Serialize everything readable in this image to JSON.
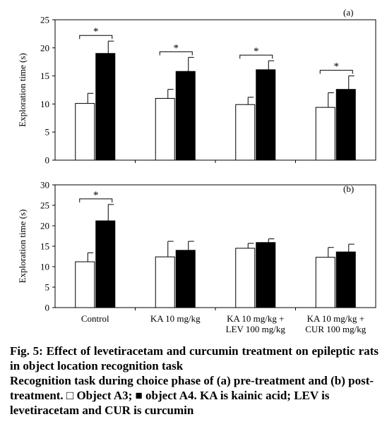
{
  "chart_data": [
    {
      "panel": "(a)",
      "type": "bar",
      "ylabel": "Exploration time (s)",
      "ylim": [
        0,
        25
      ],
      "yticks": [
        0,
        5,
        10,
        15,
        20,
        25
      ],
      "categories": [
        "Control",
        "KA 10 mg/kg",
        "KA 10 mg/kg + LEV 100 mg/kg",
        "KA 10 mg/kg + CUR 100 mg/kg"
      ],
      "series": [
        {
          "values": [
            10.1,
            11.0,
            9.9,
            9.4
          ],
          "errors": [
            1.8,
            1.6,
            1.3,
            2.6
          ],
          "color": "#ffffff"
        },
        {
          "values": [
            19.0,
            15.8,
            16.1,
            12.6
          ],
          "errors": [
            2.2,
            2.5,
            1.6,
            2.4
          ],
          "color": "#000000"
        }
      ],
      "significance": [
        "*",
        "*",
        "*",
        "*"
      ]
    },
    {
      "panel": "(b)",
      "type": "bar",
      "ylabel": "Exploration time (s)",
      "ylim": [
        0,
        30
      ],
      "yticks": [
        0,
        5,
        10,
        15,
        20,
        25,
        30
      ],
      "categories": [
        "Control",
        "KA 10 mg/kg",
        "KA 10 mg/kg + LEV 100 mg/kg",
        "KA 10 mg/kg + CUR 100 mg/kg"
      ],
      "series": [
        {
          "values": [
            11.2,
            12.4,
            14.5,
            12.3
          ],
          "errors": [
            2.2,
            3.8,
            1.2,
            2.4
          ],
          "color": "#ffffff"
        },
        {
          "values": [
            21.2,
            14.0,
            15.9,
            13.6
          ],
          "errors": [
            4.0,
            2.2,
            0.9,
            1.9
          ],
          "color": "#000000"
        }
      ],
      "significance": [
        "*",
        "",
        "",
        ""
      ]
    }
  ],
  "category_lines": [
    [
      "Control"
    ],
    [
      "KA 10 mg/kg"
    ],
    [
      "KA 10 mg/kg +",
      "LEV 100 mg/kg"
    ],
    [
      "KA 10 mg/kg +",
      "CUR 100 mg/kg"
    ]
  ],
  "caption": {
    "title": "Fig. 5: Effect of levetiracetam and curcumin treatment on epileptic rats in object location recognition task",
    "body": "Recognition task during choice phase of (a) pre-treatment and (b) post-treatment. □ Object A3; ■ object A4. KA is kainic acid; LEV is levetiracetam and CUR is curcumin"
  }
}
